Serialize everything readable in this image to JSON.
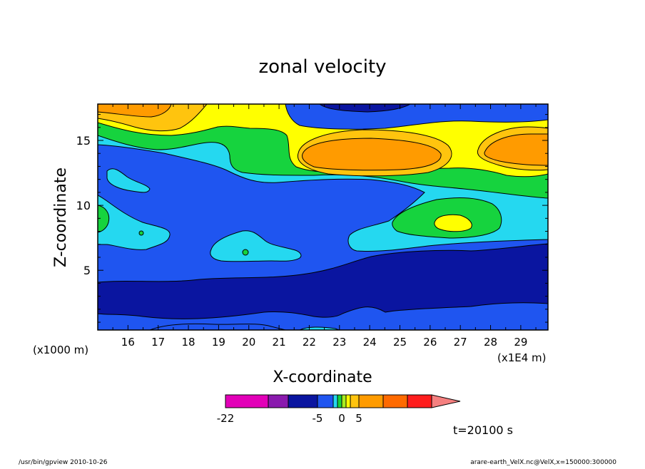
{
  "chart_data": {
    "type": "heatmap",
    "title": "zonal velocity",
    "xlabel": "X-coordinate",
    "ylabel": "Z-coordinate",
    "x_unit_left": "(x1000 m)",
    "x_unit_right": "(x1E4 m)",
    "xlim": [
      15.0,
      29.9
    ],
    "ylim": [
      0.4,
      17.8
    ],
    "x_ticks": [
      "16",
      "17",
      "18",
      "19",
      "20",
      "21",
      "22",
      "23",
      "24",
      "25",
      "26",
      "27",
      "28",
      "29"
    ],
    "y_ticks": [
      "5",
      "10",
      "15"
    ],
    "time_label": "t=20100 s",
    "colorbar": {
      "levels": [
        -22,
        -15,
        -10,
        -5,
        -3,
        -1,
        0,
        1,
        3,
        5,
        10,
        15
      ],
      "colors": [
        "#e200b8",
        "#8a1aae",
        "#0a15a0",
        "#1f55f0",
        "#25d8f0",
        "#16d33e",
        "#a8ec20",
        "#ffff00",
        "#ffc40e",
        "#ff9b00",
        "#ff6a00",
        "#ff1d1d",
        "#f58080"
      ],
      "labels": [
        {
          "value": -22,
          "text": "-22"
        },
        {
          "value": -5,
          "text": "-5"
        },
        {
          "value": 0,
          "text": "0"
        },
        {
          "value": 5,
          "text": "5"
        }
      ]
    },
    "field": {
      "description": "Z levels (bottom to top): low values dark blue near surface, blue mid-level, cyan/green/yellow band around Z=12-16 with orange maxima near X=23.5-25.5 and X=28-29.9, orange/yellow in upper-left corner, dark blue near top center."
    }
  },
  "footer": {
    "left": "/usr/bin/gpview   2010-10-26",
    "right": "arare-earth_VelX.nc@VelX,x=150000:300000"
  }
}
